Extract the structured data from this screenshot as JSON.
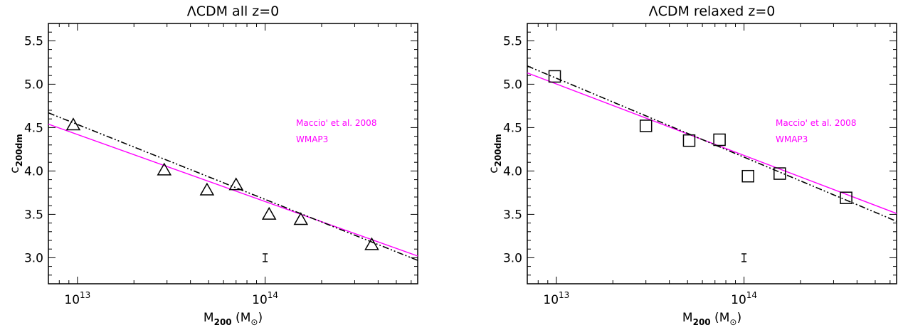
{
  "chart_data": [
    {
      "type": "scatter",
      "title": "ΛCDM all z=0",
      "xlabel": {
        "main": "M",
        "sub": "200",
        "unit_open": " (M",
        "unit_sub": "⊙",
        "unit_close": ")"
      },
      "ylabel": {
        "main": "c",
        "sub": "200dm"
      },
      "x_scale": "log",
      "xlim": [
        7000000000000.0,
        650000000000000.0
      ],
      "ylim": [
        2.7,
        5.7
      ],
      "x_ticks": [
        10000000000000.0,
        100000000000000.0
      ],
      "x_tick_labels": [
        {
          "base": "10",
          "exp": "13"
        },
        {
          "base": "10",
          "exp": "14"
        }
      ],
      "y_ticks": [
        3.0,
        3.5,
        4.0,
        4.5,
        5.0,
        5.5
      ],
      "y_tick_labels": [
        "3.0",
        "3.5",
        "4.0",
        "4.5",
        "5.0",
        "5.5"
      ],
      "marker": "triangle",
      "points": [
        {
          "x": 9500000000000.0,
          "y": 4.53
        },
        {
          "x": 29000000000000.0,
          "y": 4.01
        },
        {
          "x": 49000000000000.0,
          "y": 3.78
        },
        {
          "x": 70000000000000.0,
          "y": 3.84
        },
        {
          "x": 105000000000000.0,
          "y": 3.5
        },
        {
          "x": 155000000000000.0,
          "y": 3.44
        },
        {
          "x": 370000000000000.0,
          "y": 3.15
        }
      ],
      "fit_line": {
        "style": "dash-dot-dot",
        "color": "#000000",
        "x": [
          7000000000000.0,
          650000000000000.0
        ],
        "y": [
          4.67,
          2.97
        ]
      },
      "reference_line": {
        "color": "#ff00ff",
        "x": [
          7000000000000.0,
          650000000000000.0
        ],
        "y": [
          4.54,
          3.02
        ]
      },
      "error_bar": {
        "x": 100000000000000.0,
        "y": 3.0,
        "half_height": 0.045
      },
      "annotations": [
        {
          "text": "Maccio' et al. 2008",
          "color": "#ff00ff"
        },
        {
          "text": "WMAP3",
          "color": "#ff00ff"
        }
      ]
    },
    {
      "type": "scatter",
      "title": "ΛCDM relaxed z=0",
      "xlabel": {
        "main": "M",
        "sub": "200",
        "unit_open": " (M",
        "unit_sub": "⊙",
        "unit_close": ")"
      },
      "ylabel": {
        "main": "c",
        "sub": "200dm"
      },
      "x_scale": "log",
      "xlim": [
        7000000000000.0,
        650000000000000.0
      ],
      "ylim": [
        2.7,
        5.7
      ],
      "x_ticks": [
        10000000000000.0,
        100000000000000.0
      ],
      "x_tick_labels": [
        {
          "base": "10",
          "exp": "13"
        },
        {
          "base": "10",
          "exp": "14"
        }
      ],
      "y_ticks": [
        3.0,
        3.5,
        4.0,
        4.5,
        5.0,
        5.5
      ],
      "y_tick_labels": [
        "3.0",
        "3.5",
        "4.0",
        "4.5",
        "5.0",
        "5.5"
      ],
      "marker": "square",
      "points": [
        {
          "x": 9800000000000.0,
          "y": 5.09
        },
        {
          "x": 30000000000000.0,
          "y": 4.52
        },
        {
          "x": 51000000000000.0,
          "y": 4.35
        },
        {
          "x": 74000000000000.0,
          "y": 4.36
        },
        {
          "x": 105000000000000.0,
          "y": 3.94
        },
        {
          "x": 155000000000000.0,
          "y": 3.97
        },
        {
          "x": 350000000000000.0,
          "y": 3.69
        }
      ],
      "fit_line": {
        "style": "dash-dot-dot",
        "color": "#000000",
        "x": [
          7000000000000.0,
          650000000000000.0
        ],
        "y": [
          5.21,
          3.42
        ]
      },
      "reference_line": {
        "color": "#ff00ff",
        "x": [
          7000000000000.0,
          650000000000000.0
        ],
        "y": [
          5.13,
          3.51
        ]
      },
      "error_bar": {
        "x": 100000000000000.0,
        "y": 3.0,
        "half_height": 0.045
      },
      "annotations": [
        {
          "text": "Maccio' et al. 2008",
          "color": "#ff00ff"
        },
        {
          "text": "WMAP3",
          "color": "#ff00ff"
        }
      ]
    }
  ]
}
